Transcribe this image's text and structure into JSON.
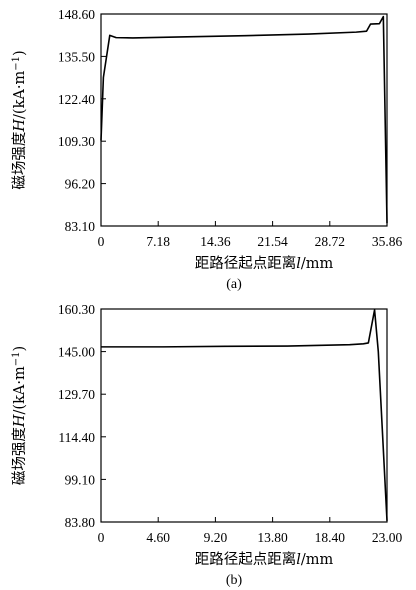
{
  "chart_data": [
    {
      "type": "line",
      "panel_label": "(a)",
      "xlabel_prefix": "距路径起点距离",
      "xlabel_var": "l",
      "xlabel_unit": "/mm",
      "ylabel_prefix": "磁场强度",
      "ylabel_var": "H",
      "ylabel_unit": "/(kA·m",
      "ylabel_exp": "−1",
      "ylabel_close": ")",
      "xlim": [
        0,
        35.86
      ],
      "ylim": [
        83.1,
        148.6
      ],
      "xticks": [
        "0",
        "7.18",
        "14.36",
        "21.54",
        "28.72",
        "35.86"
      ],
      "yticks": [
        "83.10",
        "96.20",
        "109.30",
        "122.40",
        "135.50",
        "148.60"
      ],
      "series": [
        {
          "x": [
            0,
            0.3,
            1.1,
            1.9,
            4.0,
            10.0,
            18.0,
            26.0,
            32.0,
            33.3,
            33.8,
            34.9,
            35.4,
            35.86
          ],
          "y": [
            109.5,
            129.0,
            142.0,
            141.3,
            141.2,
            141.5,
            141.9,
            142.4,
            143.0,
            143.3,
            145.5,
            145.6,
            147.8,
            84.0
          ]
        }
      ]
    },
    {
      "type": "line",
      "panel_label": "(b)",
      "xlabel_prefix": "距路径起点距离",
      "xlabel_var": "l",
      "xlabel_unit": "/mm",
      "ylabel_prefix": "磁场强度",
      "ylabel_var": "H",
      "ylabel_unit": "/(kA·m",
      "ylabel_exp": "−1",
      "ylabel_close": ")",
      "xlim": [
        0,
        23.0
      ],
      "ylim": [
        83.8,
        160.3
      ],
      "xticks": [
        "0",
        "4.60",
        "9.20",
        "13.80",
        "18.40",
        "23.00"
      ],
      "yticks": [
        "83.80",
        "99.10",
        "114.40",
        "129.70",
        "145.00",
        "160.30"
      ],
      "series": [
        {
          "x": [
            0,
            5.0,
            10.0,
            15.0,
            20.0,
            21.1,
            21.5,
            22.0,
            22.3,
            23.0
          ],
          "y": [
            146.7,
            146.7,
            146.9,
            147.0,
            147.5,
            147.8,
            148.1,
            160.0,
            145.0,
            84.2
          ]
        }
      ]
    }
  ]
}
